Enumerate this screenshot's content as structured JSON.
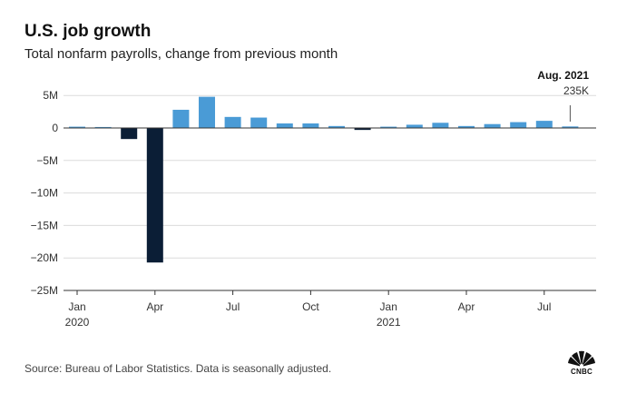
{
  "header": {
    "title": "U.S. job growth",
    "subtitle": "Total nonfarm payrolls, change from previous month"
  },
  "footer": {
    "source": "Source: Bureau of Labor Statistics. Data is seasonally adjusted.",
    "logo_text": "CNBC"
  },
  "colors": {
    "positive": "#4a9bd6",
    "negative": "#0b1e36",
    "grid": "#dcdcdc",
    "axis": "#333333",
    "text": "#333333"
  },
  "chart_data": {
    "type": "bar",
    "title": "U.S. job growth",
    "subtitle": "Total nonfarm payrolls, change from previous month",
    "xlabel": "",
    "ylabel": "",
    "ylim": [
      -25,
      6
    ],
    "y_unit": "millions of jobs",
    "grid": true,
    "y_ticks": [
      5,
      0,
      -5,
      -10,
      -15,
      -20,
      -25
    ],
    "y_tick_labels": [
      "5M",
      "0",
      "−5M",
      "−10M",
      "−15M",
      "−20M",
      "−25M"
    ],
    "categories": [
      "Jan 2020",
      "Feb 2020",
      "Mar 2020",
      "Apr 2020",
      "May 2020",
      "Jun 2020",
      "Jul 2020",
      "Aug 2020",
      "Sep 2020",
      "Oct 2020",
      "Nov 2020",
      "Dec 2020",
      "Jan 2021",
      "Feb 2021",
      "Mar 2021",
      "Apr 2021",
      "May 2021",
      "Jun 2021",
      "Jul 2021",
      "Aug 2021"
    ],
    "values": [
      0.2,
      0.15,
      -1.7,
      -20.7,
      2.8,
      4.8,
      1.7,
      1.6,
      0.7,
      0.7,
      0.3,
      -0.3,
      0.2,
      0.5,
      0.8,
      0.3,
      0.6,
      0.9,
      1.1,
      0.235
    ],
    "x_tick_labels": [
      {
        "index": 0,
        "label": "Jan",
        "sublabel": "2020"
      },
      {
        "index": 3,
        "label": "Apr",
        "sublabel": ""
      },
      {
        "index": 6,
        "label": "Jul",
        "sublabel": ""
      },
      {
        "index": 9,
        "label": "Oct",
        "sublabel": ""
      },
      {
        "index": 12,
        "label": "Jan",
        "sublabel": "2021"
      },
      {
        "index": 15,
        "label": "Apr",
        "sublabel": ""
      },
      {
        "index": 18,
        "label": "Jul",
        "sublabel": ""
      }
    ],
    "annotation": {
      "index": 19,
      "title": "Aug. 2021",
      "label": "235K"
    }
  }
}
